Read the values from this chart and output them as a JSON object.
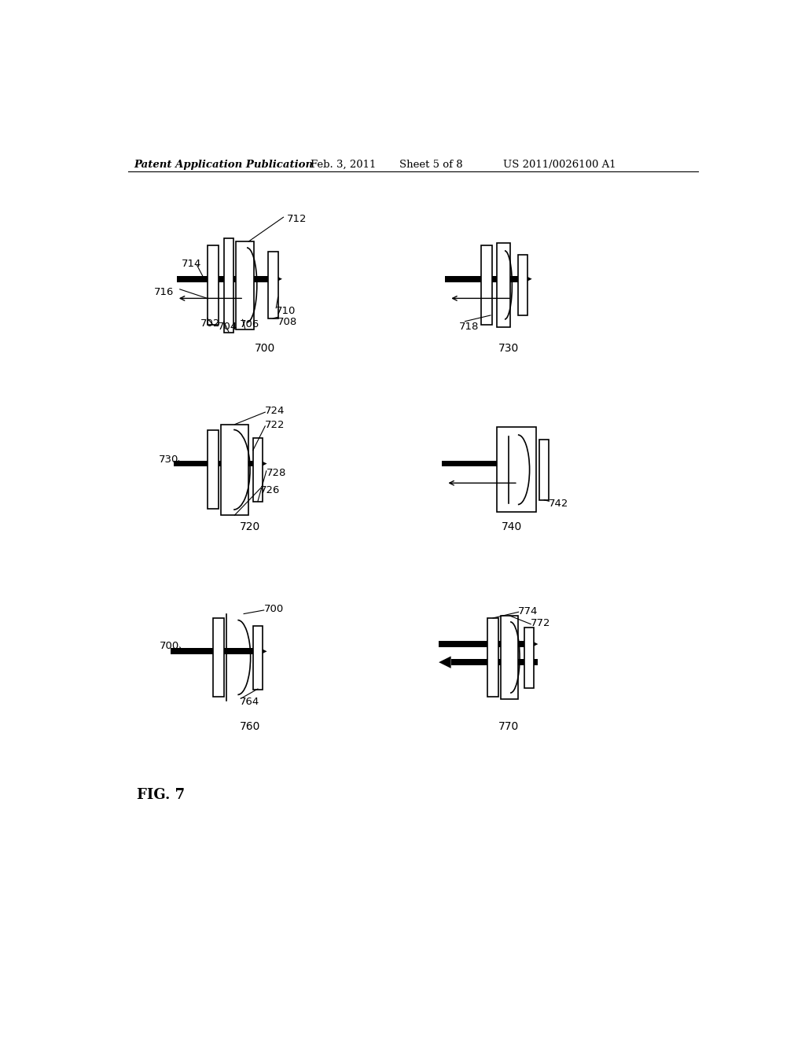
{
  "bg_color": "#ffffff",
  "header_text": "Patent Application Publication",
  "header_date": "Feb. 3, 2011",
  "header_sheet": "Sheet 5 of 8",
  "header_patent": "US 2011/0026100 A1",
  "fig_label": "FIG. 7"
}
